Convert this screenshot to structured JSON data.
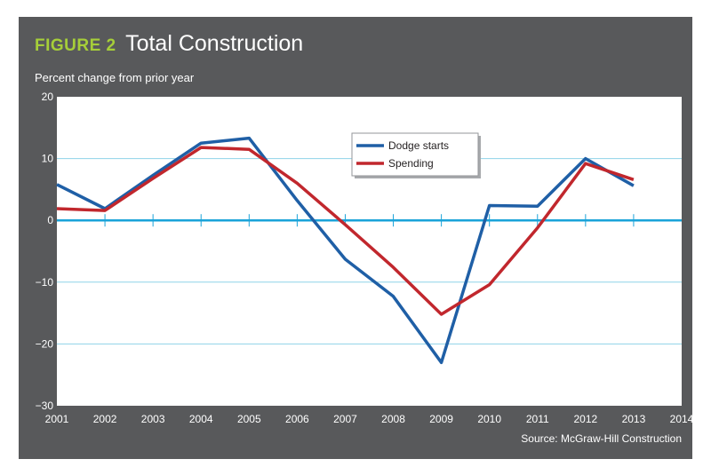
{
  "header": {
    "figure_label": "FIGURE 2",
    "figure_title": "Total Construction"
  },
  "source": "Source: McGraw-Hill Construction",
  "colors": {
    "panel": "#58595b",
    "plot_bg": "#ffffff",
    "grid": "#8fd3e8",
    "zero_line": "#1aa3d9",
    "dodge": "#1f5fa6",
    "spending": "#c1272d",
    "accent_label": "#a6ce39"
  },
  "chart_data": {
    "type": "line",
    "title": "Total Construction",
    "xlabel": "",
    "ylabel": "Percent change from prior year",
    "x": [
      2001,
      2002,
      2003,
      2004,
      2005,
      2006,
      2007,
      2008,
      2009,
      2010,
      2011,
      2012,
      2013
    ],
    "x_ticks": [
      "2001",
      "2002",
      "2003",
      "2004",
      "2005",
      "2006",
      "2007",
      "2008",
      "2009",
      "2010",
      "2011",
      "2012",
      "2013",
      "2014"
    ],
    "xlim": [
      2001,
      2014
    ],
    "ylim": [
      -30,
      20
    ],
    "y_ticks": [
      20,
      10,
      0,
      -10,
      -20,
      -30
    ],
    "y_tick_labels": [
      "20",
      "10",
      "0",
      "−10",
      "−20",
      "−30"
    ],
    "grid": true,
    "legend_position": "top-center",
    "series": [
      {
        "name": "Dodge starts",
        "color_key": "dodge",
        "values": [
          5.8,
          1.9,
          7.3,
          12.5,
          13.3,
          3.2,
          -6.3,
          -12.3,
          -23.0,
          2.4,
          2.3,
          10.0,
          5.6
        ]
      },
      {
        "name": "Spending",
        "color_key": "spending",
        "values": [
          1.9,
          1.6,
          6.8,
          11.8,
          11.5,
          6.0,
          -0.7,
          -7.6,
          -15.2,
          -10.4,
          -1.2,
          9.2,
          6.6
        ]
      }
    ]
  }
}
